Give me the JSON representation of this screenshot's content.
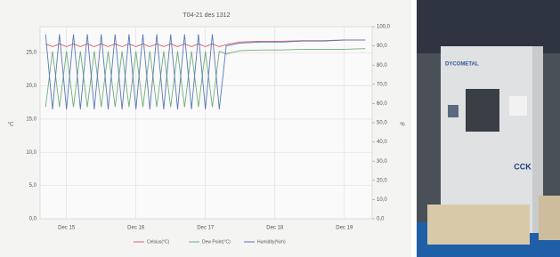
{
  "chart_data": {
    "type": "line",
    "title": "T04-21 des 1312",
    "ylabel": "°C",
    "y2label": "%",
    "x": [
      14.7,
      14.8,
      14.9,
      15.0,
      15.1,
      15.2,
      15.3,
      15.4,
      15.5,
      15.6,
      15.7,
      15.8,
      15.9,
      16.0,
      16.1,
      16.2,
      16.3,
      16.4,
      16.5,
      16.6,
      16.7,
      16.8,
      16.9,
      17.0,
      17.1,
      17.2,
      17.3,
      17.5,
      17.8,
      18.1,
      18.4,
      18.7,
      19.0,
      19.3
    ],
    "xlim": [
      14.62,
      19.4
    ],
    "xticks": [
      {
        "value": 15,
        "label": "Dec 15"
      },
      {
        "value": 16,
        "label": "Dec 16"
      },
      {
        "value": 17,
        "label": "Dec 17"
      },
      {
        "value": 18,
        "label": "Dec 18"
      },
      {
        "value": 19,
        "label": "Dec 19"
      }
    ],
    "ylim": [
      0,
      28.9
    ],
    "yticks": [
      {
        "value": 0,
        "label": "0,0"
      },
      {
        "value": 5,
        "label": "5,0"
      },
      {
        "value": 10,
        "label": "10,0"
      },
      {
        "value": 15,
        "label": "15,0"
      },
      {
        "value": 20,
        "label": "20,0"
      },
      {
        "value": 25,
        "label": "25,0"
      }
    ],
    "y2lim": [
      0,
      100
    ],
    "y2ticks": [
      {
        "value": 0,
        "label": "0,0"
      },
      {
        "value": 10,
        "label": "10,0"
      },
      {
        "value": 20,
        "label": "20,0"
      },
      {
        "value": 30,
        "label": "30,0"
      },
      {
        "value": 40,
        "label": "40,0"
      },
      {
        "value": 50,
        "label": "50,0"
      },
      {
        "value": 60,
        "label": "60,0"
      },
      {
        "value": 70,
        "label": "70,0"
      },
      {
        "value": 80,
        "label": "80,0"
      },
      {
        "value": 90,
        "label": "90,0"
      },
      {
        "value": 100,
        "label": "100,0"
      }
    ],
    "grid": true,
    "series": [
      {
        "name": "Celsius(°C)",
        "color": "#d9606a",
        "values": [
          26.3,
          25.9,
          26.3,
          25.9,
          26.3,
          25.9,
          26.3,
          25.9,
          26.3,
          25.9,
          26.3,
          25.9,
          26.3,
          25.9,
          26.3,
          25.9,
          26.3,
          25.9,
          26.3,
          25.9,
          26.3,
          25.9,
          26.3,
          25.9,
          26.3,
          25.9,
          26.2,
          26.6,
          26.7,
          26.7,
          26.8,
          26.8,
          26.9,
          26.9
        ]
      },
      {
        "name": "Dew Point(°C)",
        "color": "#6fae7a",
        "values": [
          16.8,
          25.2,
          16.8,
          25.2,
          16.8,
          25.2,
          16.8,
          25.2,
          16.8,
          25.2,
          16.8,
          25.2,
          16.8,
          25.2,
          16.8,
          25.2,
          16.8,
          25.2,
          16.8,
          25.2,
          16.8,
          25.2,
          16.8,
          25.2,
          16.8,
          25.2,
          24.8,
          25.3,
          25.4,
          25.4,
          25.5,
          25.5,
          25.5,
          25.6
        ]
      },
      {
        "name": "Humidity(%rh)",
        "color": "#5a78b8",
        "axis": "y2",
        "values": [
          96,
          57,
          96,
          57,
          96,
          57,
          96,
          57,
          96,
          57,
          96,
          57,
          96,
          57,
          96,
          57,
          96,
          57,
          96,
          57,
          96,
          57,
          96,
          57,
          96,
          57,
          90,
          91.5,
          92,
          92,
          92.5,
          92.5,
          93,
          93
        ]
      }
    ]
  },
  "photo": {
    "brand": "DYCOMETAL",
    "logo": "CCK"
  }
}
